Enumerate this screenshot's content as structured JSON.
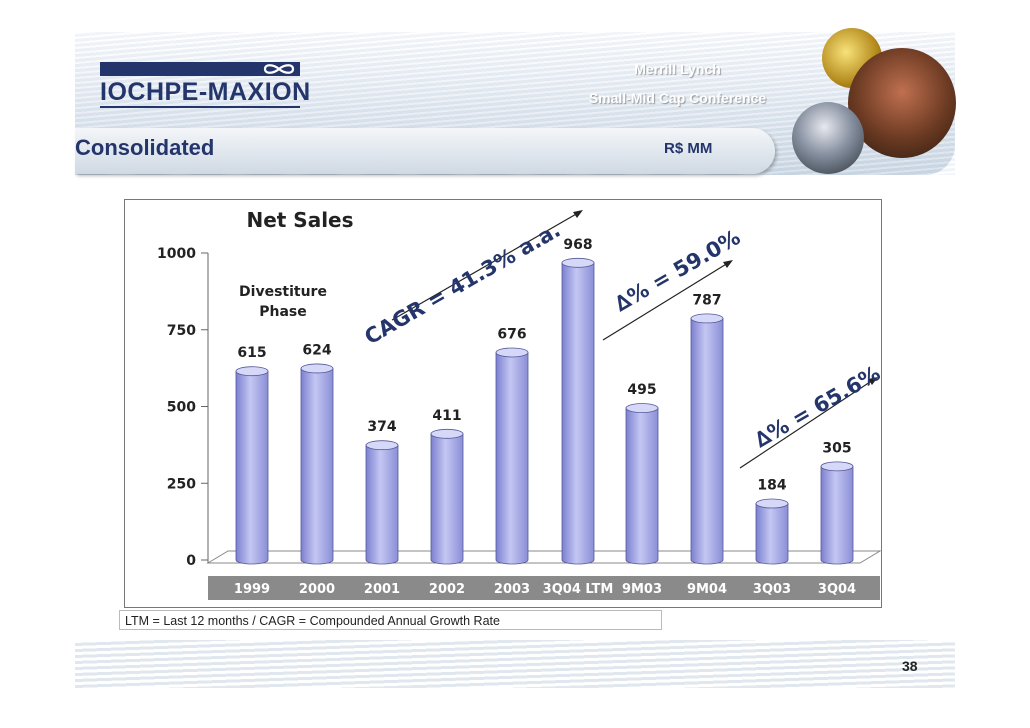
{
  "header": {
    "company_logo_text": "IOCHPE-MAXION",
    "conference_line1": "Merrill Lynch",
    "conference_line2": "Small-Mid Cap Conference",
    "section_title": "Consolidated",
    "units": "R$ MM"
  },
  "footnote": "LTM = Last 12 months / CAGR = Compounded Annual Growth Rate",
  "page_number": "38",
  "colors": {
    "bar": "#9fa3e0",
    "bar_dark": "#6a6fc4",
    "axis_band": "#8a8a8a",
    "title_text": "#23356b"
  },
  "chart_data": {
    "type": "bar",
    "title": "Net Sales",
    "categories": [
      "1999",
      "2000",
      "2001",
      "2002",
      "2003",
      "3Q04 LTM",
      "9M03",
      "9M04",
      "3Q03",
      "3Q04"
    ],
    "values": [
      615,
      624,
      374,
      411,
      676,
      968,
      495,
      787,
      184,
      305
    ],
    "value_labels": [
      "615",
      "624",
      "374",
      "411",
      "676",
      "968",
      "495",
      "787",
      "184",
      "305"
    ],
    "ylim": [
      0,
      1000
    ],
    "yticks": [
      0,
      250,
      500,
      750,
      1000
    ],
    "ytick_labels": [
      "0",
      "250",
      "500",
      "750",
      "1000"
    ],
    "grid": false,
    "annotations": {
      "divestiture_line1": "Divestiture",
      "divestiture_line2": "Phase",
      "cagr": "CAGR = 41.3% a.a.",
      "delta_9m": "∆% = 59.0%",
      "delta_3q": "∆% = 65.6%"
    }
  }
}
